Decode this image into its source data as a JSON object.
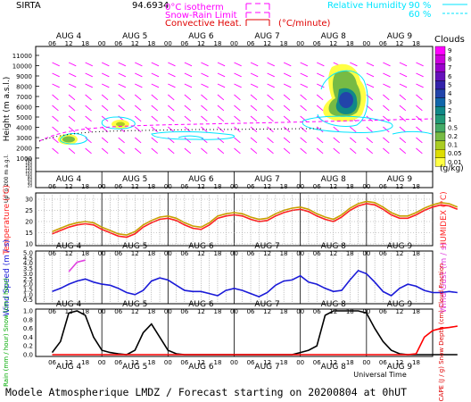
{
  "header": {
    "station": "SIRTA",
    "station_code": "94.6934",
    "legend_left": [
      {
        "label": "0°C isotherm",
        "color": "#ff00ff"
      },
      {
        "label": "Snow-Rain Limit",
        "color": "#ff00ff"
      },
      {
        "label": "Convective Heat.",
        "color": "#e00000"
      }
    ],
    "conv_unit": "(°C/minute)",
    "legend_right_label": "Relative Humidity",
    "rh_levels": [
      "90 %",
      "60 %"
    ],
    "rh_color": "#00e5ff"
  },
  "footer": {
    "xlabel": "Universal Time",
    "caption": "Modele Atmospherique LMDZ / Forecast starting on 20200804 at 0hUT"
  },
  "time_axis": {
    "days": [
      "AUG 4",
      "AUG 5",
      "AUG 6",
      "AUG 7",
      "AUG 8",
      "AUG 9"
    ],
    "hour_ticks": [
      "06",
      "12",
      "18",
      "00",
      "06",
      "12",
      "18",
      "00",
      "06",
      "12",
      "18",
      "00",
      "06",
      "12",
      "18",
      "00",
      "06",
      "12",
      "18",
      "00",
      "06",
      "12",
      "18"
    ]
  },
  "chart_data": [
    {
      "type": "heatmap",
      "title": "Clouds",
      "ylabel": "Height (m a.s.l.)",
      "ylabel_low": "Up to 200 m a.g.l.",
      "y_ticks_upper": [
        "11000",
        "10000",
        "9000",
        "8000",
        "7000",
        "6000",
        "5000",
        "4000",
        "3000",
        "2000",
        "1000"
      ],
      "y_ticks_lower": [
        "200",
        "180",
        "160",
        "140",
        "120",
        "100",
        "80",
        "60",
        "40",
        "20"
      ],
      "colorbar": {
        "unit": "(g/kg)",
        "levels": [
          "9",
          "8",
          "7",
          "6",
          "5",
          "4",
          "3",
          "2",
          "1",
          "0.5",
          "0.2",
          "0.1",
          "0.05",
          "0.01"
        ],
        "colors": [
          "#ff00ff",
          "#cc00dd",
          "#9900cc",
          "#6611bb",
          "#3322aa",
          "#2244aa",
          "#1166aa",
          "#118888",
          "#229977",
          "#44aa66",
          "#77bb44",
          "#aacc22",
          "#dddd00",
          "#ffff44"
        ]
      },
      "cloud_blobs": [
        {
          "x_hours": 12,
          "height_m": 2300,
          "level_g_kg": 0.2
        },
        {
          "x_hours": 31,
          "height_m": 3800,
          "level_g_kg": 0.1
        },
        {
          "x_hours": 107,
          "height_m": 5500,
          "level_g_kg": 0.5
        },
        {
          "x_hours": 108,
          "height_m": 8200,
          "level_g_kg": 0.2
        }
      ]
    },
    {
      "type": "line",
      "ylabel": "Temperature (°C)",
      "ylabel_right": "HUMIDEX (°C)",
      "y_ticks": [
        "30",
        "25",
        "20",
        "15",
        "10"
      ],
      "ylim": [
        10,
        32
      ],
      "x_start": 6,
      "x_step": 3,
      "series": [
        {
          "color": "#ff2222",
          "values": [
            14.5,
            16,
            17.5,
            18.5,
            19,
            18.5,
            16.5,
            15,
            13.5,
            13,
            14.5,
            17.5,
            19.5,
            21,
            21.5,
            20.5,
            18.5,
            17,
            16.5,
            18.5,
            21.5,
            22.5,
            23,
            22.5,
            21,
            20,
            20.5,
            22.5,
            24,
            25,
            25.5,
            24.5,
            22.5,
            21,
            20,
            22,
            25,
            27,
            28,
            27.5,
            25.5,
            23,
            21.5,
            21.5,
            23,
            25,
            26.5,
            27.5,
            27,
            25.5
          ]
        },
        {
          "color": "#c8a000",
          "values": [
            15.5,
            17,
            18.5,
            19.5,
            20,
            19.5,
            17.5,
            16,
            14.5,
            14,
            15.5,
            18.5,
            20.5,
            22,
            22.5,
            21.5,
            19.5,
            18,
            17.5,
            19.5,
            22.5,
            23.5,
            24,
            23.5,
            22,
            21,
            21.5,
            23.5,
            25,
            26,
            26.5,
            25.5,
            23.5,
            22,
            21,
            23,
            26,
            28,
            29,
            28.5,
            26.5,
            24,
            22.5,
            22.5,
            24,
            26,
            27.5,
            28.5,
            28,
            26.5
          ]
        }
      ]
    },
    {
      "type": "line",
      "ylabel": "Wind Speed (m / s)",
      "ylabel_right": "Wind Gust (m / s)",
      "y_ticks": [
        "5.0",
        "4.5",
        "4.0",
        "3.5",
        "3.0",
        "2.5",
        "2.0",
        "1.5",
        "1.0",
        "0.5"
      ],
      "ylim": [
        0.3,
        5.0
      ],
      "x_start": 6,
      "x_step": 3,
      "series": [
        {
          "name": "Wind Speed",
          "color": "#1a1ad8",
          "values": [
            1.3,
            1.6,
            2.0,
            2.3,
            2.5,
            2.2,
            2.0,
            1.9,
            1.6,
            1.2,
            1.0,
            1.4,
            2.3,
            2.6,
            2.4,
            1.9,
            1.4,
            1.3,
            1.3,
            1.1,
            0.9,
            1.4,
            1.6,
            1.4,
            1.1,
            0.8,
            1.2,
            1.9,
            2.3,
            2.4,
            2.8,
            2.2,
            2.0,
            1.6,
            1.3,
            1.4,
            2.4,
            3.3,
            3.0,
            2.2,
            1.3,
            0.9,
            1.6,
            2.0,
            1.8,
            1.4,
            1.2,
            1.2,
            1.3,
            1.2
          ]
        },
        {
          "name": "Wind Gust",
          "color": "#e040e0",
          "values": [
            null,
            null,
            3.2,
            4.1,
            4.3,
            null,
            null,
            null,
            null,
            null,
            null,
            null,
            null,
            null,
            null,
            null,
            null,
            null,
            null,
            null,
            null,
            null,
            null,
            null,
            null,
            null,
            null,
            null,
            null,
            null,
            null,
            null,
            null,
            null,
            null,
            null,
            null,
            null,
            null,
            null,
            null,
            null,
            null,
            null,
            null,
            null,
            null,
            null,
            null,
            null
          ]
        }
      ]
    },
    {
      "type": "line",
      "ylabel_left": "Rain (mm / hour) Snow (cm / hour)",
      "ylabel_right": "CAPE (J / g) Snow Depth (cm) Cloud Fraction",
      "y_ticks": [
        "1.0",
        "0.8",
        "0.6",
        "0.4",
        "0.2",
        "0.0"
      ],
      "ylim": [
        0,
        1.0
      ],
      "x_start": 6,
      "x_step": 3,
      "series": [
        {
          "name": "Cloud Fraction",
          "color": "#000000",
          "values": [
            0.05,
            0.3,
            0.95,
            1.0,
            0.9,
            0.4,
            0.1,
            0.05,
            0.02,
            0.0,
            0.1,
            0.5,
            0.7,
            0.4,
            0.1,
            0.02,
            0.0,
            0.0,
            0.0,
            0.0,
            0.0,
            0.0,
            0.0,
            0.0,
            0.0,
            0.0,
            0.0,
            0.0,
            0.0,
            0.0,
            0.05,
            0.1,
            0.2,
            0.9,
            1.0,
            1.0,
            1.0,
            1.0,
            0.95,
            0.6,
            0.3,
            0.1,
            0.02,
            0.0,
            0.0,
            0.0,
            0.0,
            0.0,
            0.0,
            0.0
          ]
        },
        {
          "name": "CAPE",
          "color": "#ff0000",
          "values": [
            0,
            0,
            0,
            0,
            0,
            0,
            0,
            0,
            0,
            0,
            0,
            0,
            0,
            0,
            0,
            0,
            0,
            0,
            0,
            0,
            0,
            0,
            0,
            0,
            0,
            0,
            0,
            0,
            0,
            0,
            0,
            0,
            0,
            0,
            0,
            0,
            0,
            0,
            0,
            0,
            0,
            0,
            0,
            0,
            0.02,
            0.4,
            0.55,
            0.6,
            0.62,
            0.65
          ]
        }
      ]
    }
  ]
}
